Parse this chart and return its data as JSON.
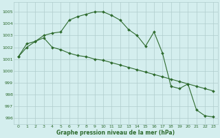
{
  "series1": {
    "x": [
      0,
      1,
      2,
      3,
      4,
      5,
      6,
      7,
      8,
      9,
      10,
      11,
      12,
      13,
      14,
      15,
      16,
      17,
      18,
      19,
      20,
      21,
      22,
      23
    ],
    "y": [
      1001.2,
      1002.0,
      1002.5,
      1003.0,
      1003.2,
      1003.3,
      1004.3,
      1004.6,
      1004.8,
      1005.0,
      1005.0,
      1004.7,
      1004.3,
      1003.5,
      1003.0,
      1002.1,
      1003.3,
      1001.5,
      998.7,
      998.5,
      998.9,
      996.7,
      996.2,
      996.1
    ]
  },
  "series2": {
    "x": [
      0,
      1,
      2,
      3,
      4,
      5,
      6,
      7,
      8,
      9,
      10,
      11,
      12,
      13,
      14,
      15,
      16,
      17,
      18,
      19,
      20,
      21,
      22,
      23
    ],
    "y": [
      1001.2,
      1002.3,
      1002.5,
      1002.8,
      1002.0,
      1001.8,
      1001.5,
      1001.3,
      1001.2,
      1001.0,
      1000.9,
      1000.7,
      1000.5,
      1000.3,
      1000.1,
      999.9,
      999.7,
      999.5,
      999.3,
      999.1,
      998.9,
      998.7,
      998.5,
      998.3
    ]
  },
  "line_color": "#2d6a2d",
  "bg_color": "#d4eeee",
  "grid_color": "#b0cccc",
  "xlabel": "Graphe pression niveau de la mer (hPa)",
  "ylim": [
    995.5,
    1005.8
  ],
  "xlim": [
    -0.5,
    23.5
  ],
  "yticks": [
    996,
    997,
    998,
    999,
    1000,
    1001,
    1002,
    1003,
    1004,
    1005
  ],
  "xticks": [
    0,
    1,
    2,
    3,
    4,
    5,
    6,
    7,
    8,
    9,
    10,
    11,
    12,
    13,
    14,
    15,
    16,
    17,
    18,
    19,
    20,
    21,
    22,
    23
  ]
}
